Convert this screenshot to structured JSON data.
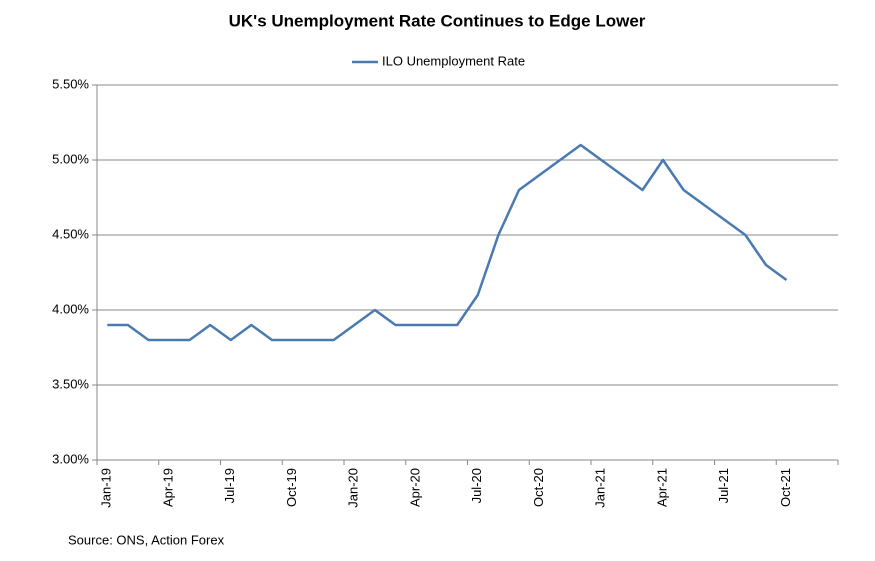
{
  "chart_data": {
    "type": "line",
    "title": "UK's Unemployment Rate Continues to Edge Lower",
    "source": "Source: ONS, Action Forex",
    "categories": [
      "Jan-19",
      null,
      null,
      "Apr-19",
      null,
      null,
      "Jul-19",
      null,
      null,
      "Oct-19",
      null,
      null,
      "Jan-20",
      null,
      null,
      "Apr-20",
      null,
      null,
      "Jul-20",
      null,
      null,
      "Oct-20",
      null,
      null,
      "Jan-21",
      null,
      null,
      "Apr-21",
      null,
      null,
      "Jul-21",
      null,
      null,
      "Oct-21",
      null,
      null
    ],
    "series": [
      {
        "name": "ILO Unemployment Rate",
        "color": "#4a7ab0",
        "values": [
          3.9,
          3.9,
          3.8,
          3.8,
          3.8,
          3.9,
          3.8,
          3.9,
          3.8,
          3.8,
          3.8,
          3.8,
          3.9,
          4.0,
          3.9,
          3.9,
          3.9,
          3.9,
          4.1,
          4.5,
          4.8,
          4.9,
          5.0,
          5.1,
          5.0,
          4.9,
          4.8,
          5.0,
          4.8,
          4.7,
          4.6,
          4.5,
          4.3,
          4.2,
          null,
          null
        ]
      }
    ],
    "ylim": [
      3.0,
      5.5
    ],
    "yticks": [
      {
        "value": 3.0,
        "label": "3.00%"
      },
      {
        "value": 3.5,
        "label": "3.50%"
      },
      {
        "value": 4.0,
        "label": "4.00%"
      },
      {
        "value": 4.5,
        "label": "4.50%"
      },
      {
        "value": 5.0,
        "label": "5.00%"
      },
      {
        "value": 5.5,
        "label": "5.50%"
      }
    ],
    "grid": true,
    "legend": "top"
  }
}
